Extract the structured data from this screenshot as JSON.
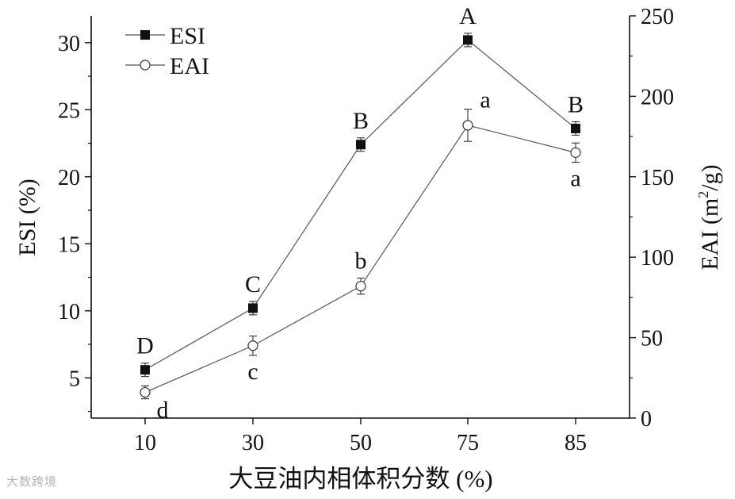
{
  "chart_data": {
    "type": "line",
    "x_categories": [
      "10",
      "30",
      "50",
      "75",
      "85"
    ],
    "xlabel": "大豆油内相体积分数 (%)",
    "ylabel_left": "ESI (%)",
    "ylabel_right_main": "EAI (m",
    "ylabel_right_sup": "2",
    "ylabel_right_tail": "/g)",
    "y_left_range": [
      2,
      32
    ],
    "y_left_ticks": [
      5,
      10,
      15,
      20,
      25,
      30
    ],
    "y_right_range": [
      0,
      250
    ],
    "y_right_ticks": [
      0,
      50,
      100,
      150,
      200,
      250
    ],
    "legend_position": "top-left",
    "series": [
      {
        "name": "ESI",
        "axis": "left",
        "marker": "filled-square",
        "values": [
          5.6,
          10.2,
          22.4,
          30.2,
          23.6
        ],
        "errors": [
          0.5,
          0.5,
          0.5,
          0.5,
          0.5
        ],
        "letters": [
          "D",
          "C",
          "B",
          "A",
          "B"
        ],
        "letter_positions": [
          "above",
          "above",
          "above",
          "above",
          "above"
        ]
      },
      {
        "name": "EAI",
        "axis": "right",
        "marker": "open-circle",
        "values": [
          16,
          45,
          82,
          182,
          165
        ],
        "errors": [
          4,
          6,
          5,
          10,
          6
        ],
        "letters": [
          "d",
          "c",
          "b",
          "a",
          "a"
        ],
        "letter_positions": [
          "below-right",
          "below",
          "above",
          "above-right",
          "below"
        ]
      }
    ],
    "colors": {
      "line": "#555555",
      "marker": "#111111",
      "axis": "#111111"
    }
  },
  "watermark": "大数跨境"
}
